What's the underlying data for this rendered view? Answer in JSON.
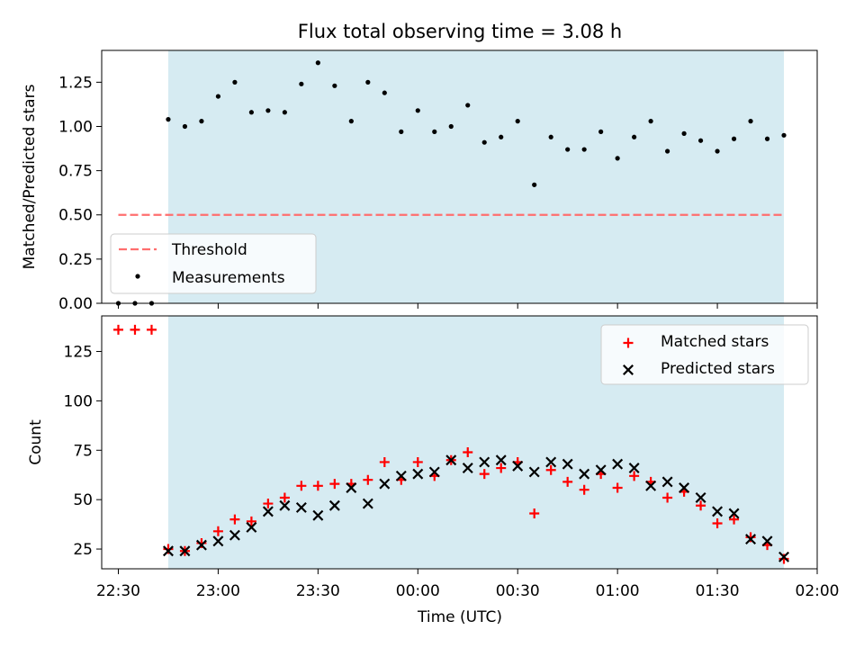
{
  "chart_data": [
    {
      "type": "scatter",
      "title": "Flux total observing time = 3.08 h",
      "ylabel": "Matched/Predicted stars",
      "xlabel": "",
      "xlim": [
        "22:25",
        "02:00"
      ],
      "ylim": [
        0,
        1.43
      ],
      "yticks": [
        0.0,
        0.25,
        0.5,
        0.75,
        1.0,
        1.25
      ],
      "ytick_labels": [
        "0.00",
        "0.25",
        "0.50",
        "0.75",
        "1.00",
        "1.25"
      ],
      "legend_position": "lower-left",
      "shaded_range": [
        "22:45",
        "01:50"
      ],
      "shade_color": "#add8e6",
      "series": [
        {
          "name": "Threshold",
          "type": "line",
          "style": "dashed",
          "color": "#ff6e6e",
          "x": [
            "22:30",
            "01:50"
          ],
          "y": [
            0.5,
            0.5
          ]
        },
        {
          "name": "Measurements",
          "type": "scatter",
          "color": "#000000",
          "x": [
            "22:30",
            "22:35",
            "22:40",
            "22:45",
            "22:50",
            "22:55",
            "23:00",
            "23:05",
            "23:10",
            "23:15",
            "23:20",
            "23:25",
            "23:30",
            "23:35",
            "23:40",
            "23:45",
            "23:50",
            "23:55",
            "00:00",
            "00:05",
            "00:10",
            "00:15",
            "00:20",
            "00:25",
            "00:30",
            "00:35",
            "00:40",
            "00:45",
            "00:50",
            "00:55",
            "01:00",
            "01:05",
            "01:10",
            "01:15",
            "01:20",
            "01:25",
            "01:30",
            "01:35",
            "01:40",
            "01:45",
            "01:50"
          ],
          "y": [
            0.0,
            0.0,
            0.0,
            1.04,
            1.0,
            1.03,
            1.17,
            1.25,
            1.08,
            1.09,
            1.08,
            1.24,
            1.36,
            1.23,
            1.03,
            1.25,
            1.19,
            0.97,
            1.09,
            0.97,
            1.0,
            1.12,
            0.91,
            0.94,
            1.03,
            0.67,
            0.94,
            0.87,
            0.87,
            0.97,
            0.82,
            0.94,
            1.03,
            0.86,
            0.96,
            0.92,
            0.86,
            0.93,
            1.03,
            0.93,
            0.95
          ]
        }
      ]
    },
    {
      "type": "scatter",
      "title": "",
      "xlabel": "Time (UTC)",
      "ylabel": "Count",
      "xlim": [
        "22:25",
        "02:00"
      ],
      "ylim": [
        15,
        143
      ],
      "yticks": [
        25,
        50,
        75,
        100,
        125
      ],
      "ytick_labels": [
        "25",
        "50",
        "75",
        "100",
        "125"
      ],
      "xticks": [
        "22:30",
        "23:00",
        "23:30",
        "00:00",
        "00:30",
        "01:00",
        "01:30",
        "02:00"
      ],
      "xtick_labels": [
        "22:30",
        "23:00",
        "23:30",
        "00:00",
        "00:30",
        "01:00",
        "01:30",
        "02:00"
      ],
      "legend_position": "upper-right",
      "shaded_range": [
        "22:45",
        "01:50"
      ],
      "shade_color": "#add8e6",
      "series": [
        {
          "name": "Matched stars",
          "marker": "plus",
          "color": "#ff0000",
          "x": [
            "22:30",
            "22:35",
            "22:40",
            "22:45",
            "22:50",
            "22:55",
            "23:00",
            "23:05",
            "23:10",
            "23:15",
            "23:20",
            "23:25",
            "23:30",
            "23:35",
            "23:40",
            "23:45",
            "23:50",
            "23:55",
            "00:00",
            "00:05",
            "00:10",
            "00:15",
            "00:20",
            "00:25",
            "00:30",
            "00:35",
            "00:40",
            "00:45",
            "00:50",
            "00:55",
            "01:00",
            "01:05",
            "01:10",
            "01:15",
            "01:20",
            "01:25",
            "01:30",
            "01:35",
            "01:40",
            "01:45",
            "01:50"
          ],
          "y": [
            136,
            136,
            136,
            25,
            24,
            28,
            34,
            40,
            39,
            48,
            51,
            57,
            57,
            58,
            58,
            60,
            69,
            60,
            69,
            62,
            70,
            74,
            63,
            66,
            69,
            43,
            65,
            59,
            55,
            63,
            56,
            62,
            59,
            51,
            54,
            47,
            38,
            40,
            31,
            27,
            20
          ]
        },
        {
          "name": "Predicted stars",
          "marker": "x",
          "color": "#000000",
          "x": [
            "22:45",
            "22:50",
            "22:55",
            "23:00",
            "23:05",
            "23:10",
            "23:15",
            "23:20",
            "23:25",
            "23:30",
            "23:35",
            "23:40",
            "23:45",
            "23:50",
            "23:55",
            "00:00",
            "00:05",
            "00:10",
            "00:15",
            "00:20",
            "00:25",
            "00:30",
            "00:35",
            "00:40",
            "00:45",
            "00:50",
            "00:55",
            "01:00",
            "01:05",
            "01:10",
            "01:15",
            "01:20",
            "01:25",
            "01:30",
            "01:35",
            "01:40",
            "01:45",
            "01:50"
          ],
          "y": [
            24,
            24,
            27,
            29,
            32,
            36,
            44,
            47,
            46,
            42,
            47,
            56,
            48,
            58,
            62,
            63,
            64,
            70,
            66,
            69,
            70,
            67,
            64,
            69,
            68,
            63,
            65,
            68,
            66,
            57,
            59,
            56,
            51,
            44,
            43,
            30,
            29,
            21
          ]
        }
      ]
    }
  ]
}
